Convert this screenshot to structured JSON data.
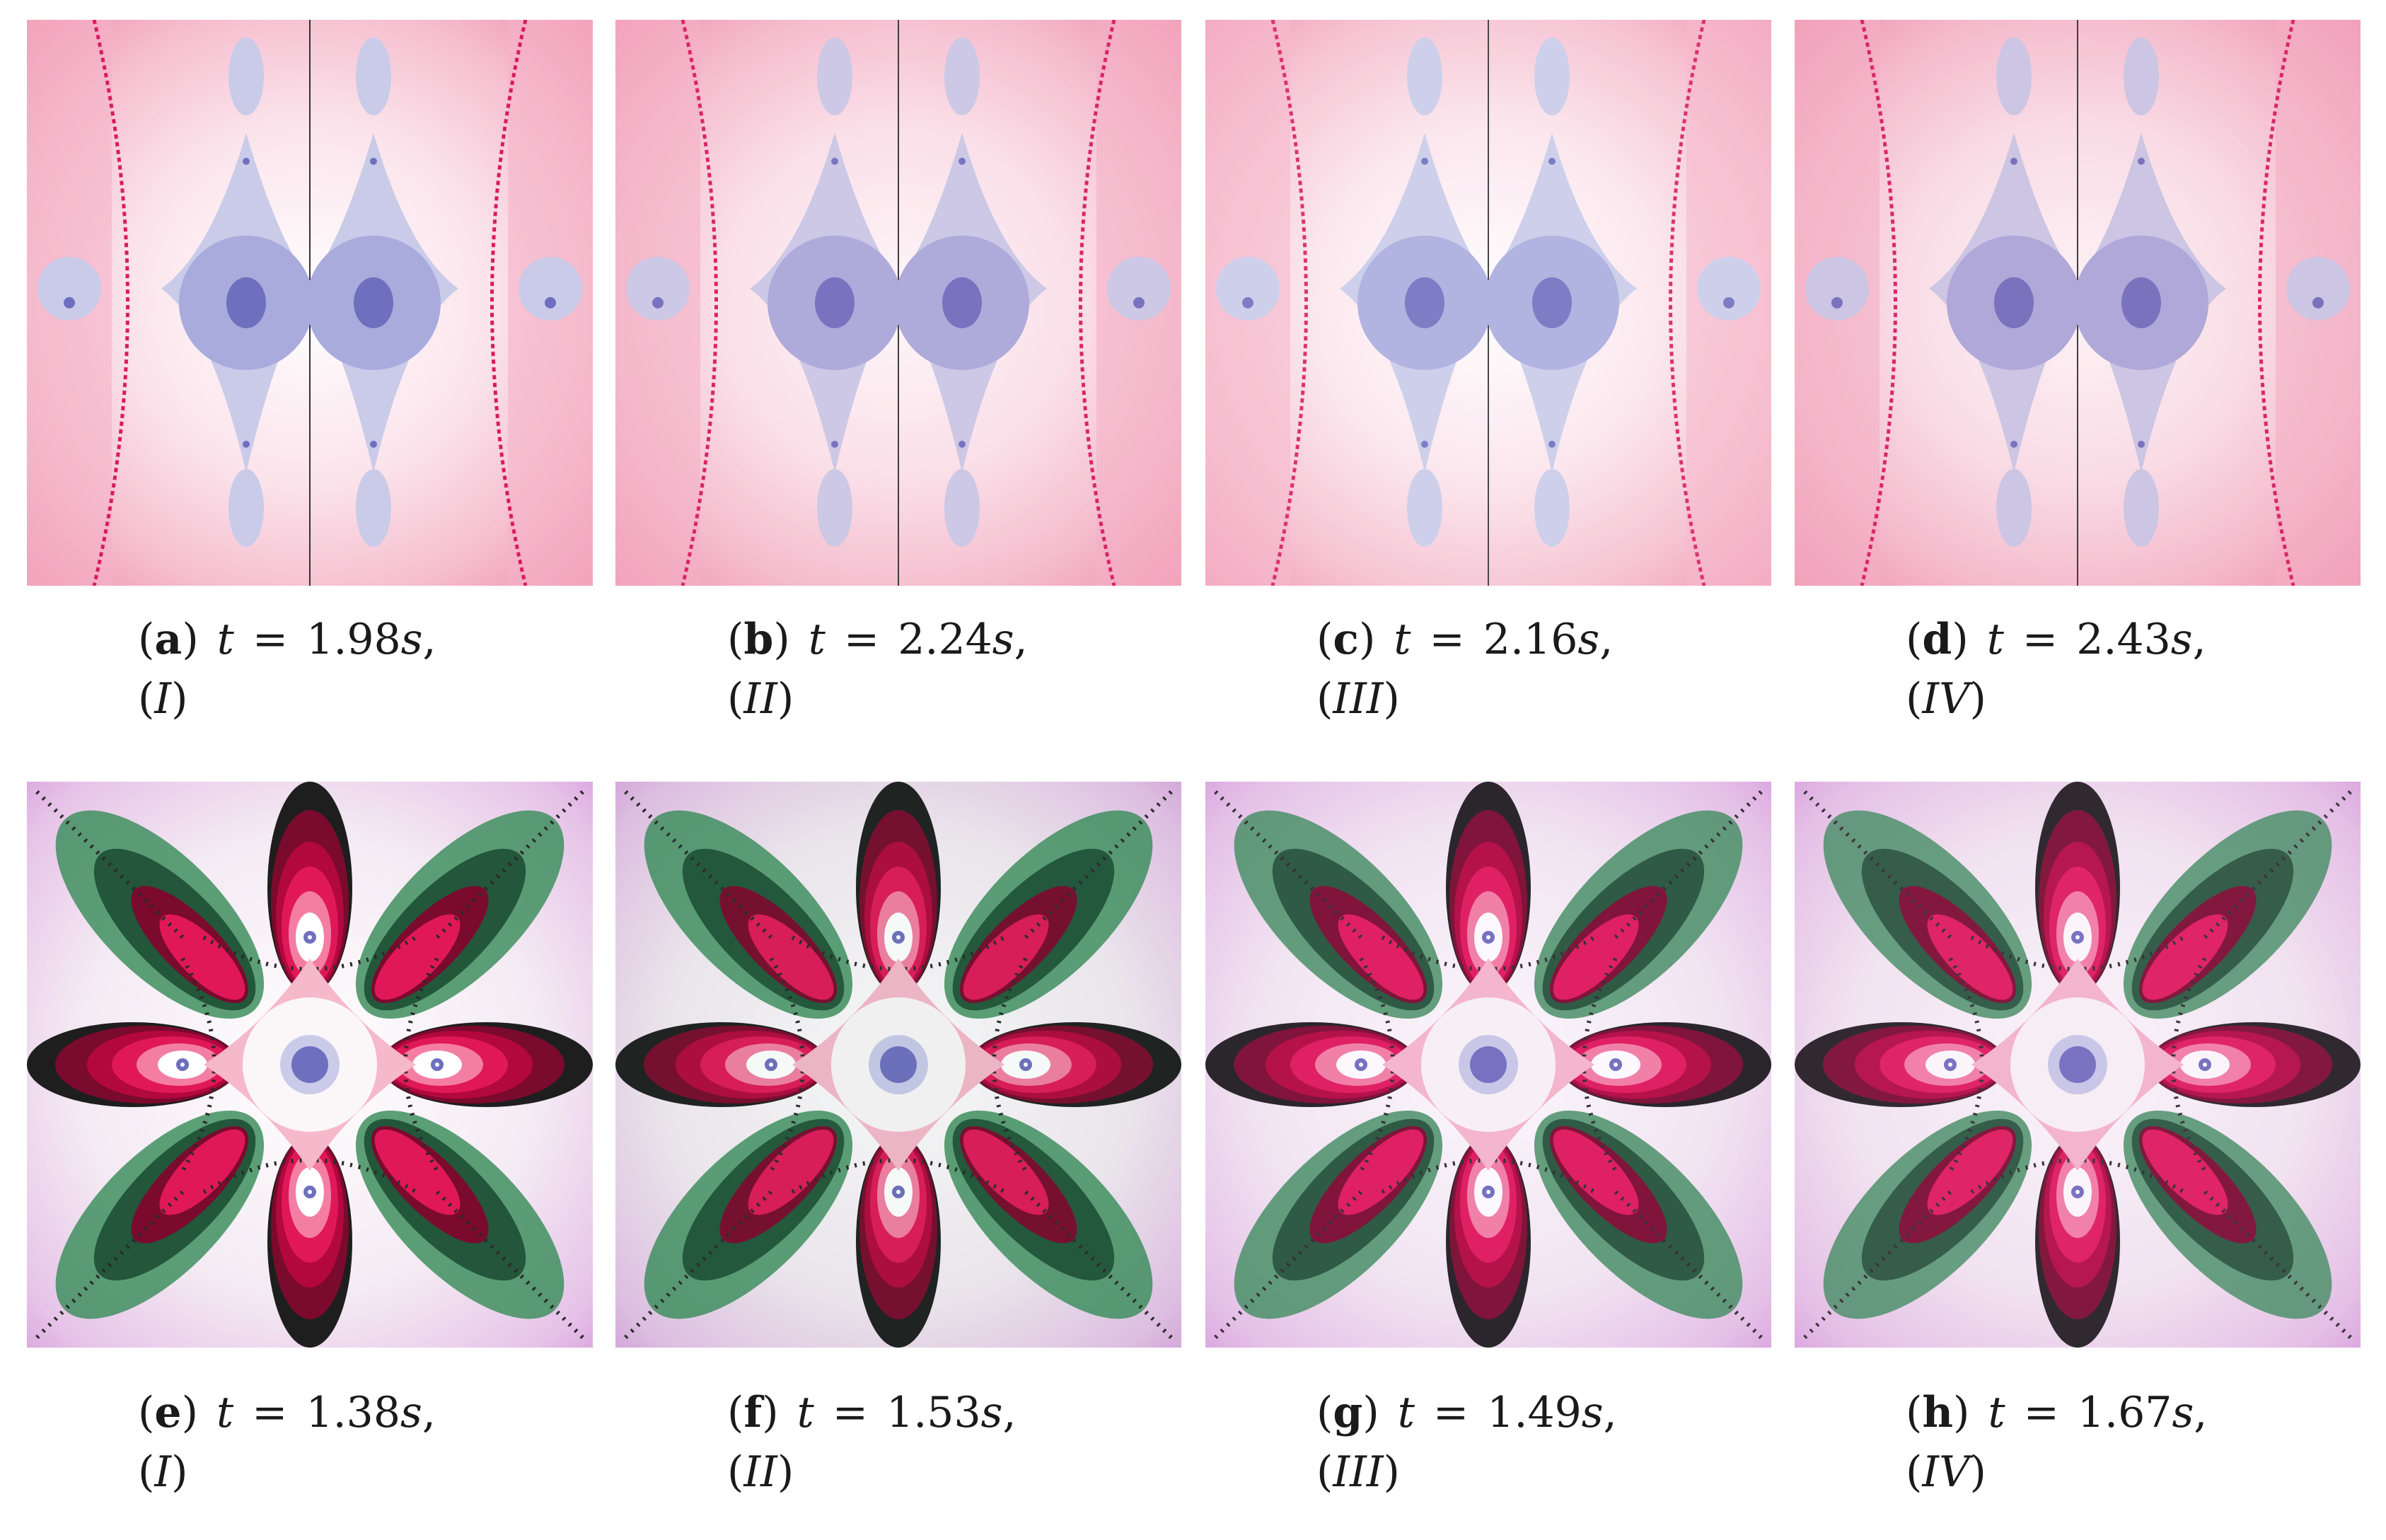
{
  "figure": {
    "panels": [
      {
        "id": "a",
        "label": "a",
        "time": "1.98",
        "method": "I",
        "row": "top"
      },
      {
        "id": "b",
        "label": "b",
        "time": "2.24",
        "method": "II",
        "row": "top"
      },
      {
        "id": "c",
        "label": "c",
        "time": "2.16",
        "method": "III",
        "row": "top"
      },
      {
        "id": "d",
        "label": "d",
        "time": "2.43",
        "method": "IV",
        "row": "top"
      },
      {
        "id": "e",
        "label": "e",
        "time": "1.38",
        "method": "I",
        "row": "bottom"
      },
      {
        "id": "f",
        "label": "f",
        "time": "1.53",
        "method": "II",
        "row": "bottom"
      },
      {
        "id": "g",
        "label": "g",
        "time": "1.49",
        "method": "III",
        "row": "bottom"
      },
      {
        "id": "h",
        "label": "h",
        "time": "1.67",
        "method": "IV",
        "row": "bottom"
      }
    ],
    "time_symbol": "t",
    "equals": "=",
    "unit": "s",
    "colors": {
      "top_background": "#f7c9d7",
      "top_basin": "#c9cbe9",
      "top_root": "#6f6fbf",
      "bottom_green": "#3f8f5f",
      "bottom_magenta": "#e0185a",
      "bottom_center": "#fbf6f8",
      "bottom_root": "#6f6fbf"
    }
  }
}
